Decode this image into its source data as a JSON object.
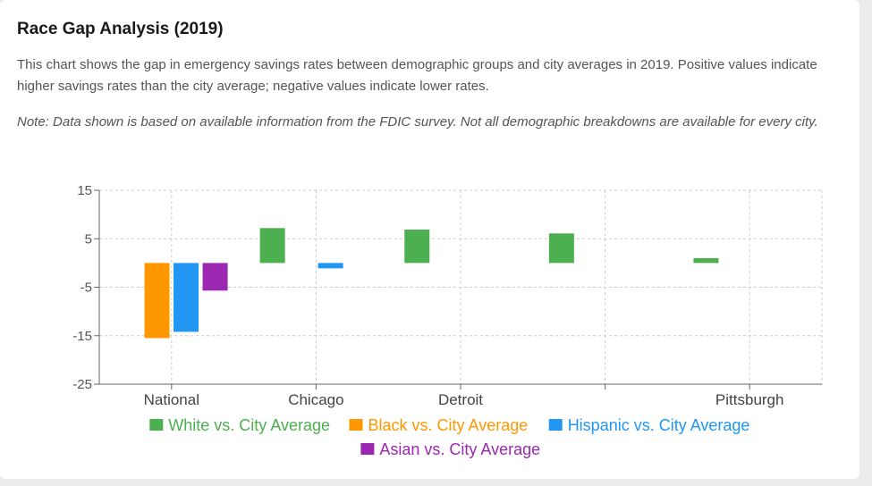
{
  "header": {
    "title": "Race Gap Analysis (2019)",
    "description": "This chart shows the gap in emergency savings rates between demographic groups and city averages in 2019. Positive values indicate higher savings rates than the city average; negative values indicate lower rates.",
    "note": "Note: Data shown is based on available information from the FDIC survey. Not all demographic breakdowns are available for every city."
  },
  "chart_data": {
    "type": "bar",
    "title": "Race Gap Analysis (2019)",
    "xlabel": "",
    "ylabel": "",
    "ylim": [
      -25,
      15
    ],
    "yticks": [
      15,
      5,
      -5,
      -15,
      -25
    ],
    "grid": true,
    "legend_position": "bottom",
    "categories": [
      "National",
      "Chicago",
      "Detroit",
      "",
      "Pittsburgh"
    ],
    "x_tick_labels": [
      "National",
      "Chicago",
      "Detroit",
      "Pittsburgh"
    ],
    "series": [
      {
        "name": "White vs. City Average",
        "color": "#4caf50",
        "values": [
          null,
          7.2,
          6.9,
          6.1,
          1.0
        ]
      },
      {
        "name": "Black vs. City Average",
        "color": "#ff9800",
        "values": [
          -15.5,
          null,
          null,
          null,
          null
        ]
      },
      {
        "name": "Hispanic vs. City Average",
        "color": "#2196f3",
        "values": [
          -14.2,
          -1.1,
          null,
          null,
          null
        ]
      },
      {
        "name": "Asian vs. City Average",
        "color": "#9c27b0",
        "values": [
          -5.7,
          null,
          null,
          null,
          null
        ]
      }
    ]
  }
}
